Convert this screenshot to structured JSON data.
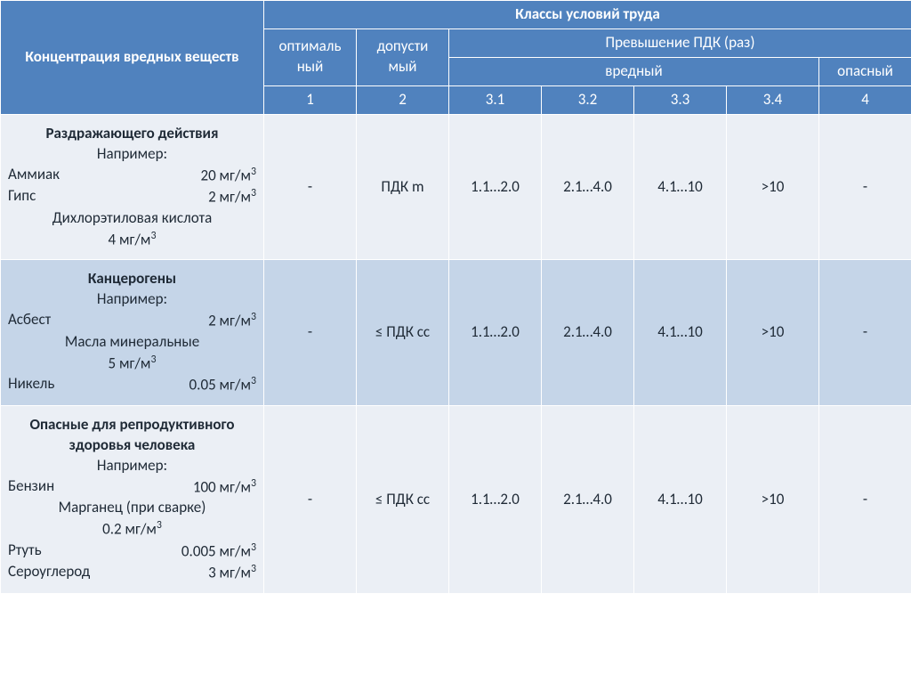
{
  "colors": {
    "header_bg": "#5082be",
    "header_fg": "#ffffff",
    "row_light": "#ebeff5",
    "row_dark": "#c5d5e8",
    "text": "#1f2a36",
    "border": "#ffffff"
  },
  "header": {
    "rowhead": "Концентрация вредных веществ",
    "classes": "Классы условий труда",
    "optimal": "оптималь\nный",
    "acceptable": "допусти\nмый",
    "exceed": "Превышение ПДК  (раз)",
    "harmful": "вредный",
    "dangerous": "опасный",
    "nums": [
      "1",
      "2",
      "3.1",
      "3.2",
      "3.3",
      "3.4",
      "4"
    ]
  },
  "rows": [
    {
      "title": "Раздражающего действия",
      "subtitle": "Например:",
      "subs": [
        {
          "name": "Аммиак",
          "value": "20 мг/м",
          "sup": "3"
        },
        {
          "name": "Гипс",
          "value": "2 мг/м",
          "sup": "3"
        }
      ],
      "center": {
        "text": "Дихлорэтиловая кислота\n4  мг/м",
        "sup": "3"
      },
      "values": [
        "-",
        "ПДК m",
        "1.1…2.0",
        "2.1…4.0",
        "4.1…10",
        ">10",
        "-"
      ]
    },
    {
      "title": "Канцерогены",
      "subtitle": "Например:",
      "subs": [
        {
          "name": "Асбест",
          "value": "2 мг/м",
          "sup": "3"
        }
      ],
      "center": {
        "text": "Масла минеральные\n5 мг/м",
        "sup": "3"
      },
      "subs2": [
        {
          "name": "Никель",
          "value": "0.05 мг/м",
          "sup": "3"
        }
      ],
      "values": [
        "-",
        "≤ ПДК сс",
        "1.1…2.0",
        "2.1…4.0",
        "4.1…10",
        ">10",
        "-"
      ]
    },
    {
      "title": "Опасные для репродуктивного здоровья человека",
      "subtitle": "Например:",
      "subs": [
        {
          "name": "Бензин",
          "value": "100 мг/м",
          "sup": "3"
        }
      ],
      "center": {
        "text": "Марганец (при сварке)\n0.2 мг/м",
        "sup": "3"
      },
      "subs2": [
        {
          "name": "Ртуть",
          "value": "0.005 мг/м",
          "sup": "3"
        },
        {
          "name": "Сероуглерод",
          "value": "3 мг/м",
          "sup": "3"
        }
      ],
      "values": [
        "-",
        "≤ ПДК сс",
        "1.1…2.0",
        "2.1…4.0",
        "4.1…10",
        ">10",
        "-"
      ]
    }
  ]
}
